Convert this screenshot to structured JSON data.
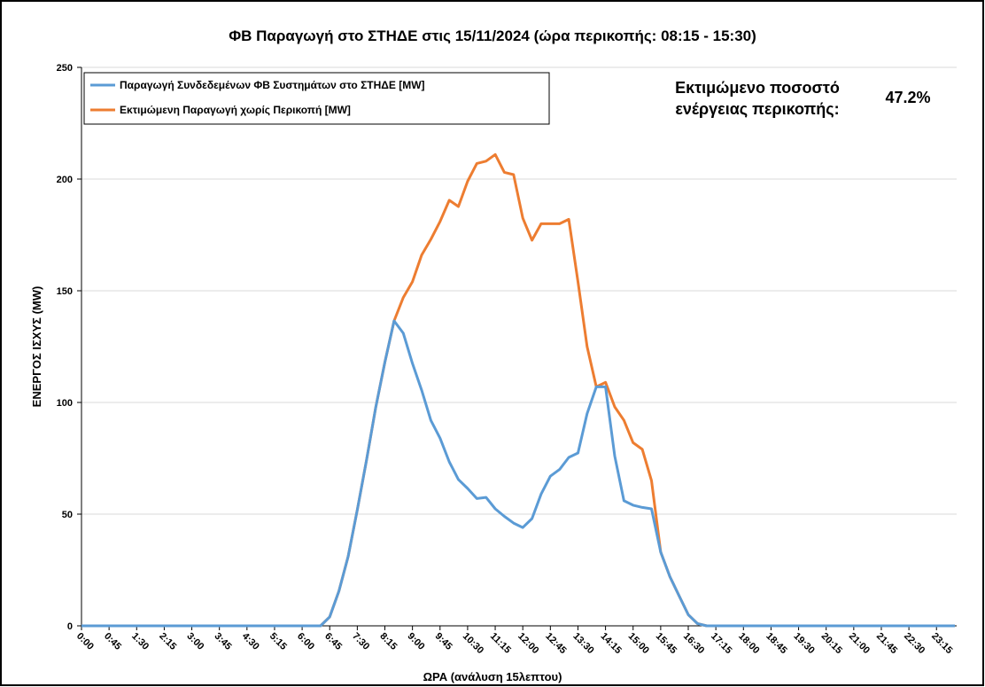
{
  "chart_data": {
    "type": "line",
    "title": "ΦΒ Παραγωγή στο ΣΤΗΔΕ στις 15/11/2024 (ώρα περικοπής: 08:15 - 15:30)",
    "x_label": "ΩΡΑ (ανάλυση 15λεπτου)",
    "y_label": "ΕΝΕΡΓΟΣ ΙΣΧΥΣ (MW)",
    "annotation_label": [
      "Εκτιμώμενο ποσοστό",
      "ενέργειας περικοπής:"
    ],
    "annotation_value": "47.2%",
    "categories": [
      "0:00",
      null,
      null,
      "0:45",
      null,
      null,
      "1:30",
      null,
      null,
      "2:15",
      null,
      null,
      "3:00",
      null,
      null,
      "3:45",
      null,
      null,
      "4:30",
      null,
      null,
      "5:15",
      null,
      null,
      "6:00",
      null,
      null,
      "6:45",
      null,
      null,
      "7:30",
      null,
      null,
      "8:15",
      null,
      null,
      "9:00",
      null,
      null,
      "9:45",
      null,
      null,
      "10:30",
      null,
      null,
      "11:15",
      null,
      null,
      "12:00",
      null,
      null,
      "12:45",
      null,
      null,
      "13:30",
      null,
      null,
      "14:15",
      null,
      null,
      "15:00",
      null,
      null,
      "15:45",
      null,
      null,
      "16:30",
      null,
      null,
      "17:15",
      null,
      null,
      "18:00",
      null,
      null,
      "18:45",
      null,
      null,
      "19:30",
      null,
      null,
      "20:15",
      null,
      null,
      "21:00",
      null,
      null,
      "21:45",
      null,
      null,
      "22:30",
      null,
      null,
      "23:15",
      null,
      null
    ],
    "series": [
      {
        "name": "Παραγωγή Συνδεδεμένων ΦΒ Συστημάτων στο ΣΤΗΔΕ [MW]",
        "color": "#5b9bd5",
        "values": [
          0,
          0,
          0,
          0,
          0,
          0,
          0,
          0,
          0,
          0,
          0,
          0,
          0,
          0,
          0,
          0,
          0,
          0,
          0,
          0,
          0,
          0,
          0,
          0,
          0,
          0,
          0,
          4,
          15.5,
          31,
          52,
          74,
          97.6,
          118,
          136.5,
          131,
          117.5,
          105.5,
          92,
          84,
          73.4,
          65.5,
          61.5,
          57,
          57.5,
          52.4,
          49,
          46,
          44,
          48,
          59,
          67,
          70,
          75.4,
          77.4,
          95,
          107,
          107,
          76,
          56,
          54,
          53,
          52.4,
          33,
          22,
          13.5,
          5,
          1,
          0,
          0,
          0,
          0,
          0,
          0,
          0,
          0,
          0,
          0,
          0,
          0,
          0,
          0,
          0,
          0,
          0,
          0,
          0,
          0,
          0,
          0,
          0,
          0,
          0,
          0,
          0,
          0
        ]
      },
      {
        "name": "Εκτιμώμενη Παραγωγή χωρίς Περικοπή [MW]",
        "color": "#ed7d31",
        "values": [
          0,
          0,
          0,
          0,
          0,
          0,
          0,
          0,
          0,
          0,
          0,
          0,
          0,
          0,
          0,
          0,
          0,
          0,
          0,
          0,
          0,
          0,
          0,
          0,
          0,
          0,
          0,
          4,
          15.5,
          31,
          52,
          74,
          97.6,
          118,
          136.5,
          147,
          154,
          166,
          173,
          181,
          190.5,
          187.7,
          199,
          207,
          208,
          211,
          203,
          202,
          182.5,
          172.6,
          180,
          180,
          180,
          182,
          154,
          125,
          107,
          109,
          98,
          92,
          82,
          79,
          65,
          33,
          22,
          13.5,
          5,
          1,
          0,
          0,
          0,
          0,
          0,
          0,
          0,
          0,
          0,
          0,
          0,
          0,
          0,
          0,
          0,
          0,
          0,
          0,
          0,
          0,
          0,
          0,
          0,
          0,
          0,
          0,
          0,
          0
        ]
      }
    ],
    "ylim": [
      0,
      250
    ],
    "yticks": [
      0,
      50,
      100,
      150,
      200,
      250
    ],
    "grid": true
  }
}
